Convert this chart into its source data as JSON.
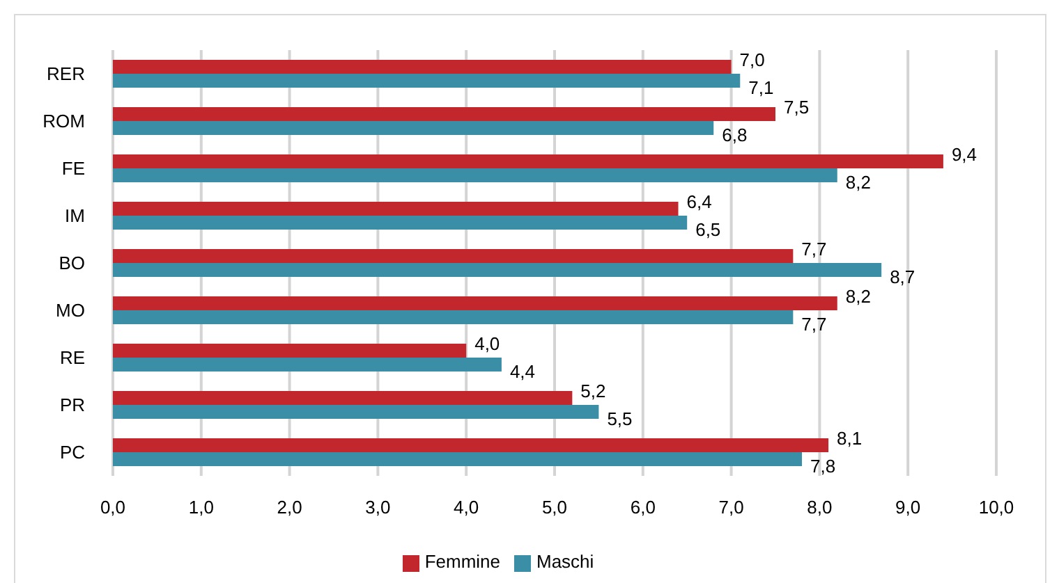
{
  "chart_data": {
    "type": "bar",
    "orientation": "horizontal",
    "categories": [
      "RER",
      "ROM",
      "FE",
      "IM",
      "BO",
      "MO",
      "RE",
      "PR",
      "PC"
    ],
    "series": [
      {
        "name": "Femmine",
        "color": "#c1272d",
        "values": [
          7.0,
          7.5,
          9.4,
          6.4,
          7.7,
          8.2,
          4.0,
          5.2,
          8.1
        ],
        "value_labels": [
          "7,0",
          "7,5",
          "9,4",
          "6,4",
          "7,7",
          "8,2",
          "4,0",
          "5,2",
          "8,1"
        ]
      },
      {
        "name": "Maschi",
        "color": "#3a8fa6",
        "values": [
          7.1,
          6.8,
          8.2,
          6.5,
          8.7,
          7.7,
          4.4,
          5.5,
          7.8
        ],
        "value_labels": [
          "7,1",
          "6,8",
          "8,2",
          "6,5",
          "8,7",
          "7,7",
          "4,4",
          "5,5",
          "7,8"
        ]
      }
    ],
    "xlim": [
      0,
      10
    ],
    "xticks": [
      {
        "value": 0,
        "label": "0,0"
      },
      {
        "value": 1,
        "label": "1,0"
      },
      {
        "value": 2,
        "label": "2,0"
      },
      {
        "value": 3,
        "label": "3,0"
      },
      {
        "value": 4,
        "label": "4,0"
      },
      {
        "value": 5,
        "label": "5,0"
      },
      {
        "value": 6,
        "label": "6,0"
      },
      {
        "value": 7,
        "label": "7,0"
      },
      {
        "value": 8,
        "label": "8,0"
      },
      {
        "value": 9,
        "label": "9,0"
      },
      {
        "value": 10,
        "label": "10,0"
      }
    ],
    "grid": "x",
    "legend": "bottom"
  }
}
